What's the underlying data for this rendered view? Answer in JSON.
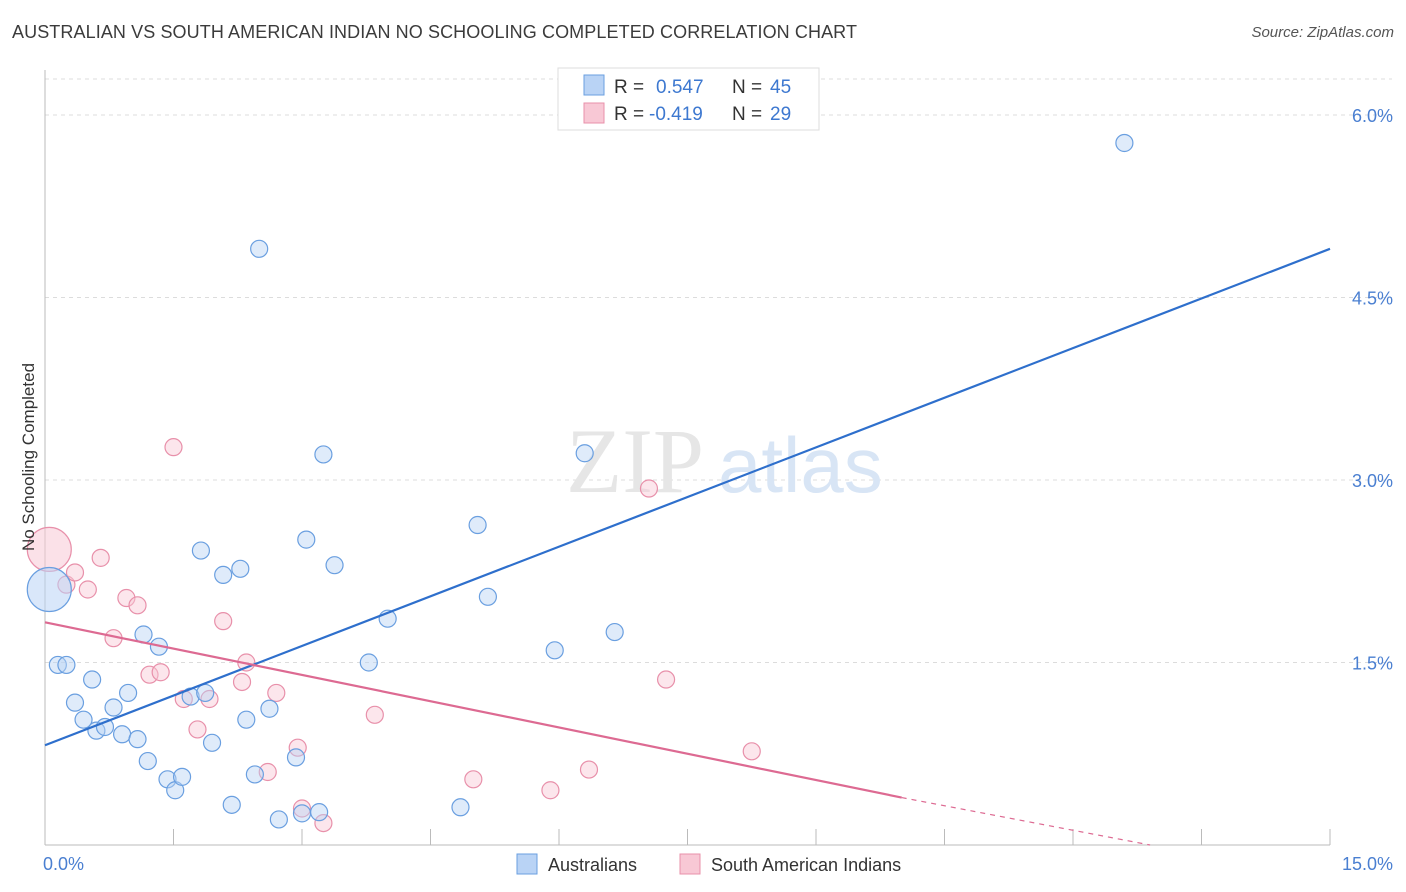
{
  "header": {
    "title": "AUSTRALIAN VS SOUTH AMERICAN INDIAN NO SCHOOLING COMPLETED CORRELATION CHART",
    "source": "Source: ZipAtlas.com"
  },
  "watermark": {
    "zip": "ZIP",
    "atlas": "atlas"
  },
  "legend_stats": [
    {
      "r_label": "R = ",
      "r_value": "0.547",
      "n_label": "N = ",
      "n_value": "45"
    },
    {
      "r_label": "R = ",
      "r_value": "-0.419",
      "n_label": "N = ",
      "n_value": "29"
    }
  ],
  "chart_data": {
    "type": "scatter",
    "title": "AUSTRALIAN VS SOUTH AMERICAN INDIAN NO SCHOOLING COMPLETED CORRELATION CHART",
    "xlabel": "",
    "ylabel": "No Schooling Completed",
    "xlim": [
      0,
      15
    ],
    "ylim": [
      0,
      6.3
    ],
    "x_tick_labels": [
      "0.0%",
      "15.0%"
    ],
    "y_ticks": [
      1.5,
      3.0,
      4.5,
      6.0
    ],
    "y_tick_labels": [
      "1.5%",
      "3.0%",
      "4.5%",
      "6.0%"
    ],
    "grid": "horizontal dashed",
    "legend_position": "bottom-center",
    "colors": {
      "australians": "#6a9fe0",
      "australians_fill": "#b9d3f5",
      "australians_line": "#2e6fcc",
      "sai": "#e890aa",
      "sai_fill": "#f8c8d5",
      "sai_line": "#dd6a92",
      "tick_text": "#4a7fd1"
    },
    "series": [
      {
        "name": "Australians",
        "points": [
          [
            0.05,
            2.1,
            "big"
          ],
          [
            0.15,
            1.48
          ],
          [
            0.25,
            1.48
          ],
          [
            0.35,
            1.17
          ],
          [
            0.45,
            1.03
          ],
          [
            0.55,
            1.36
          ],
          [
            0.6,
            0.94
          ],
          [
            0.7,
            0.97
          ],
          [
            0.8,
            1.13
          ],
          [
            0.9,
            0.91
          ],
          [
            0.97,
            1.25
          ],
          [
            1.08,
            0.87
          ],
          [
            1.15,
            1.73
          ],
          [
            1.2,
            0.69
          ],
          [
            1.33,
            1.63
          ],
          [
            1.43,
            0.54
          ],
          [
            1.52,
            0.45
          ],
          [
            1.6,
            0.56
          ],
          [
            1.7,
            1.22
          ],
          [
            1.82,
            2.42
          ],
          [
            1.87,
            1.25
          ],
          [
            1.95,
            0.84
          ],
          [
            2.08,
            2.22
          ],
          [
            2.18,
            0.33
          ],
          [
            2.28,
            2.27
          ],
          [
            2.35,
            1.03
          ],
          [
            2.45,
            0.58
          ],
          [
            2.5,
            4.9
          ],
          [
            2.62,
            1.12
          ],
          [
            2.73,
            0.21
          ],
          [
            2.93,
            0.72
          ],
          [
            3.0,
            0.26
          ],
          [
            3.05,
            2.51
          ],
          [
            3.2,
            0.27
          ],
          [
            3.25,
            3.21
          ],
          [
            3.38,
            2.3
          ],
          [
            3.78,
            1.5
          ],
          [
            4.0,
            1.86
          ],
          [
            4.85,
            0.31
          ],
          [
            5.05,
            2.63
          ],
          [
            5.17,
            2.04
          ],
          [
            5.95,
            1.6
          ],
          [
            6.3,
            3.22
          ],
          [
            6.65,
            1.75
          ],
          [
            12.6,
            5.77
          ]
        ],
        "trend": {
          "x": [
            0,
            15
          ],
          "y": [
            0.82,
            4.9
          ]
        }
      },
      {
        "name": "South American Indians",
        "points": [
          [
            0.05,
            2.43,
            "big"
          ],
          [
            0.25,
            2.14
          ],
          [
            0.35,
            2.24
          ],
          [
            0.5,
            2.1
          ],
          [
            0.65,
            2.36
          ],
          [
            0.8,
            1.7
          ],
          [
            0.95,
            2.03
          ],
          [
            1.08,
            1.97
          ],
          [
            1.22,
            1.4
          ],
          [
            1.35,
            1.42
          ],
          [
            1.5,
            3.27
          ],
          [
            1.62,
            1.2
          ],
          [
            1.78,
            0.95
          ],
          [
            1.92,
            1.2
          ],
          [
            2.08,
            1.84
          ],
          [
            2.3,
            1.34
          ],
          [
            2.35,
            1.5
          ],
          [
            2.6,
            0.6
          ],
          [
            2.7,
            1.25
          ],
          [
            2.95,
            0.8
          ],
          [
            3.0,
            0.3
          ],
          [
            3.25,
            0.18
          ],
          [
            3.85,
            1.07
          ],
          [
            5.0,
            0.54
          ],
          [
            5.9,
            0.45
          ],
          [
            6.35,
            0.62
          ],
          [
            7.05,
            2.93
          ],
          [
            7.25,
            1.36
          ],
          [
            8.25,
            0.77
          ]
        ],
        "trend": {
          "x": [
            0,
            10.0
          ],
          "y": [
            1.83,
            0.39
          ]
        },
        "trend_dashed": {
          "x": [
            10.0,
            12.9
          ],
          "y": [
            0.39,
            0.0
          ]
        }
      }
    ]
  }
}
